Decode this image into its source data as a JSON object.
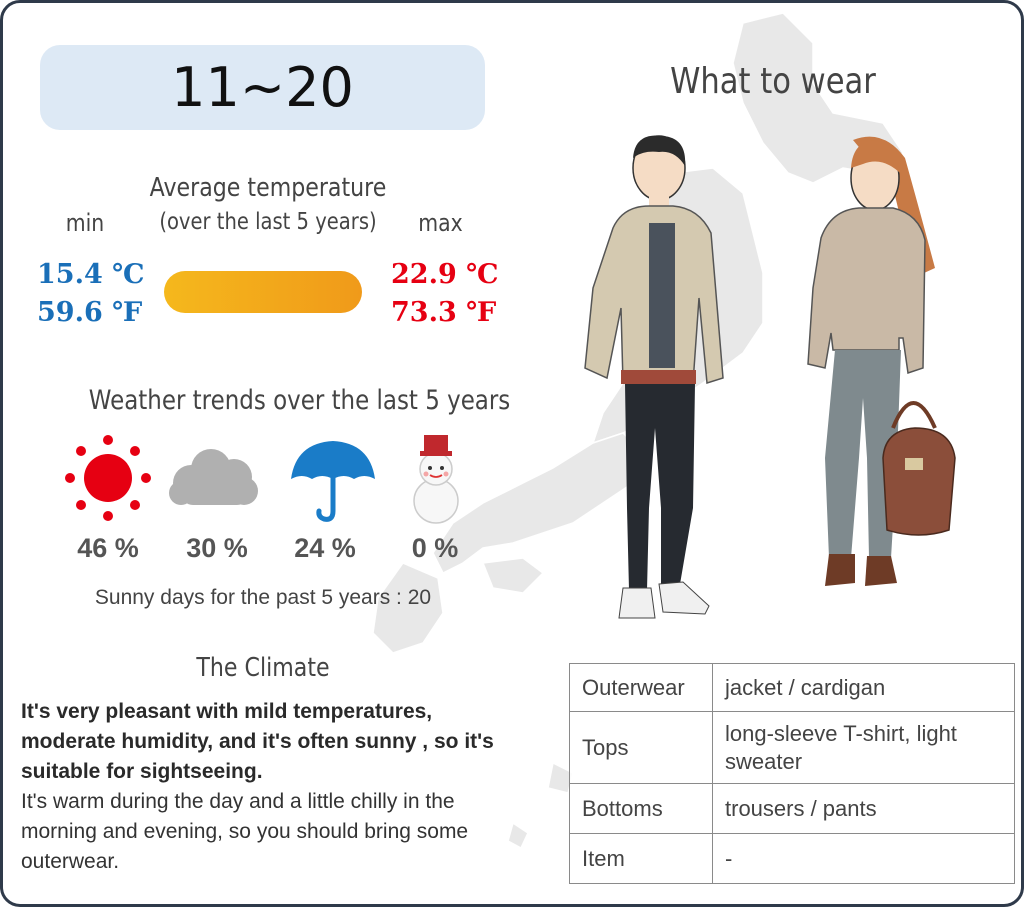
{
  "date_range": "11~20",
  "avg_temp": {
    "title": "Average temperature",
    "subtitle": "(over the last 5 years)",
    "min_label": "min",
    "max_label": "max",
    "min_c": "15.4 ℃",
    "min_f": "59.6 ℉",
    "max_c": "22.9 ℃",
    "max_f": "73.3 ℉"
  },
  "weather": {
    "title": "Weather trends over the last 5 years",
    "items": [
      {
        "icon": "sun-icon",
        "percent": "46 %"
      },
      {
        "icon": "cloud-icon",
        "percent": "30 %"
      },
      {
        "icon": "umbrella-icon",
        "percent": "24 %"
      },
      {
        "icon": "snowman-icon",
        "percent": "0 %"
      }
    ],
    "sunny_days": "Sunny days for the past 5 years : 20"
  },
  "climate": {
    "title": "The Climate",
    "bold_text": "It's very pleasant with mild temperatures, moderate humidity, and it's often sunny , so it's suitable for sightseeing.",
    "text": "It's warm during the day and a little chilly in the morning and evening, so you should bring some outerwear."
  },
  "wear": {
    "title": "What to wear",
    "rows": [
      {
        "category": "Outerwear",
        "value": "jacket / cardigan"
      },
      {
        "category": "Tops",
        "value": "long-sleeve T-shirt, light sweater"
      },
      {
        "category": "Bottoms",
        "value": "trousers / pants"
      },
      {
        "category": "Item",
        "value": "-"
      }
    ]
  },
  "colors": {
    "min_temp": "#1a6fb8",
    "max_temp": "#e60012",
    "bar_start": "#f5b81c",
    "bar_end": "#f09a1a",
    "date_box": "#dde9f5"
  }
}
